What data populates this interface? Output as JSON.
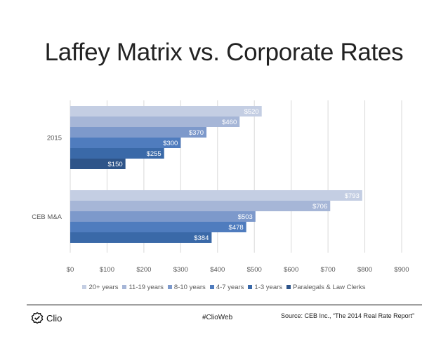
{
  "slide": {
    "title": "Laffey Matrix vs. Corporate Rates",
    "hashtag": "#ClioWeb",
    "source": "Source: CEB Inc., “The 2014 Real Rate Report”",
    "logo_text": "Clio",
    "logo_icon": "check-badge-icon"
  },
  "chart_data": {
    "type": "bar",
    "orientation": "horizontal",
    "title": "Laffey Matrix vs. Corporate Rates",
    "categories": [
      "2015",
      "CEB M&A"
    ],
    "x_ticks": [
      "$0",
      "$100",
      "$200",
      "$300",
      "$400",
      "$500",
      "$600",
      "$700",
      "$800",
      "$900"
    ],
    "xlim": [
      0,
      900
    ],
    "grid": true,
    "legend_position": "bottom",
    "series": [
      {
        "name": "20+ years",
        "color": "#c4cee3",
        "values": [
          520,
          793
        ],
        "labels": [
          "$520",
          "$793"
        ]
      },
      {
        "name": "11-19 years",
        "color": "#a6b6d7",
        "values": [
          460,
          706
        ],
        "labels": [
          "$460",
          "$706"
        ]
      },
      {
        "name": "8-10 years",
        "color": "#7d99cb",
        "values": [
          370,
          503
        ],
        "labels": [
          "$370",
          "$503"
        ]
      },
      {
        "name": "4-7 years",
        "color": "#4f7cbe",
        "values": [
          300,
          478
        ],
        "labels": [
          "$300",
          "$478"
        ]
      },
      {
        "name": "1-3 years",
        "color": "#3a69a8",
        "values": [
          255,
          384
        ],
        "labels": [
          "$255",
          "$384"
        ]
      },
      {
        "name": "Paralegals & Law  Clerks",
        "color": "#2e5489",
        "values": [
          150,
          null
        ],
        "labels": [
          "$150",
          null
        ]
      }
    ]
  }
}
